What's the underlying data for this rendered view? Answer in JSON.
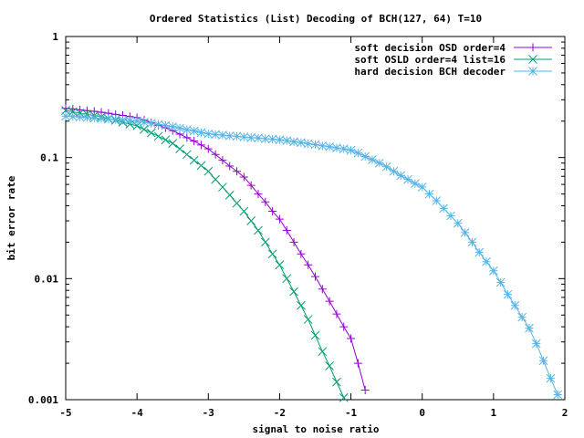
{
  "chart_data": {
    "type": "line",
    "title": "Ordered Statistics (List) Decoding of BCH(127, 64) T=10",
    "xlabel": "signal to noise ratio",
    "ylabel": "bit error rate",
    "xlim": [
      -5,
      2
    ],
    "ylim": [
      0.001,
      1
    ],
    "yscale": "log",
    "grid": false,
    "legend_position": "top-right",
    "x_ticks": [
      "-5",
      "-4",
      "-3",
      "-2",
      "-1",
      "0",
      "1",
      "2"
    ],
    "y_ticks": [
      "1",
      "0.1",
      "0.01",
      "0.001"
    ],
    "series": [
      {
        "name": "soft decision OSD order=4",
        "color": "#9400d3",
        "marker": "plus",
        "points": [
          [
            -5,
            0.255
          ],
          [
            -4.9,
            0.252
          ],
          [
            -4.8,
            0.248
          ],
          [
            -4.7,
            0.244
          ],
          [
            -4.6,
            0.241
          ],
          [
            -4.5,
            0.237
          ],
          [
            -4.4,
            0.232
          ],
          [
            -4.3,
            0.227
          ],
          [
            -4.2,
            0.223
          ],
          [
            -4.1,
            0.218
          ],
          [
            -4.0,
            0.214
          ],
          [
            -3.9,
            0.204
          ],
          [
            -3.8,
            0.194
          ],
          [
            -3.7,
            0.185
          ],
          [
            -3.6,
            0.176
          ],
          [
            -3.5,
            0.167
          ],
          [
            -3.4,
            0.156
          ],
          [
            -3.3,
            0.146
          ],
          [
            -3.2,
            0.137
          ],
          [
            -3.1,
            0.127
          ],
          [
            -3.0,
            0.118
          ],
          [
            -2.9,
            0.106
          ],
          [
            -2.8,
            0.095
          ],
          [
            -2.7,
            0.085
          ],
          [
            -2.6,
            0.077
          ],
          [
            -2.5,
            0.069
          ],
          [
            -2.4,
            0.059
          ],
          [
            -2.3,
            0.05
          ],
          [
            -2.2,
            0.043
          ],
          [
            -2.1,
            0.036
          ],
          [
            -2.0,
            0.031
          ],
          [
            -1.9,
            0.025
          ],
          [
            -1.8,
            0.02
          ],
          [
            -1.7,
            0.016
          ],
          [
            -1.6,
            0.013
          ],
          [
            -1.5,
            0.0104
          ],
          [
            -1.4,
            0.0082
          ],
          [
            -1.3,
            0.0065
          ],
          [
            -1.2,
            0.0051
          ],
          [
            -1.1,
            0.004
          ],
          [
            -1.0,
            0.0032
          ],
          [
            -0.9,
            0.002
          ],
          [
            -0.8,
            0.0012
          ]
        ]
      },
      {
        "name": "soft OSLD order=4 list=16",
        "color": "#009e73",
        "marker": "cross",
        "points": [
          [
            -5,
            0.245
          ],
          [
            -4.9,
            0.239
          ],
          [
            -4.8,
            0.233
          ],
          [
            -4.7,
            0.228
          ],
          [
            -4.6,
            0.222
          ],
          [
            -4.5,
            0.217
          ],
          [
            -4.4,
            0.21
          ],
          [
            -4.3,
            0.203
          ],
          [
            -4.2,
            0.196
          ],
          [
            -4.1,
            0.189
          ],
          [
            -4.0,
            0.183
          ],
          [
            -3.9,
            0.171
          ],
          [
            -3.8,
            0.16
          ],
          [
            -3.7,
            0.15
          ],
          [
            -3.6,
            0.14
          ],
          [
            -3.5,
            0.131
          ],
          [
            -3.4,
            0.118
          ],
          [
            -3.3,
            0.106
          ],
          [
            -3.2,
            0.095
          ],
          [
            -3.1,
            0.086
          ],
          [
            -3.0,
            0.077
          ],
          [
            -2.9,
            0.066
          ],
          [
            -2.8,
            0.057
          ],
          [
            -2.7,
            0.049
          ],
          [
            -2.6,
            0.042
          ],
          [
            -2.5,
            0.036
          ],
          [
            -2.4,
            0.03
          ],
          [
            -2.3,
            0.025
          ],
          [
            -2.2,
            0.02
          ],
          [
            -2.1,
            0.016
          ],
          [
            -2.0,
            0.013
          ],
          [
            -1.9,
            0.01
          ],
          [
            -1.8,
            0.0078
          ],
          [
            -1.7,
            0.006
          ],
          [
            -1.6,
            0.0046
          ],
          [
            -1.5,
            0.0034
          ],
          [
            -1.4,
            0.0025
          ],
          [
            -1.3,
            0.0019
          ],
          [
            -1.2,
            0.0014
          ],
          [
            -1.1,
            0.00104
          ]
        ]
      },
      {
        "name": "hard decision BCH decoder",
        "color": "#56b4e9",
        "marker": "star",
        "points": [
          [
            -5,
            0.22
          ],
          [
            -4.9,
            0.218
          ],
          [
            -4.8,
            0.216
          ],
          [
            -4.7,
            0.214
          ],
          [
            -4.6,
            0.212
          ],
          [
            -4.5,
            0.21
          ],
          [
            -4.4,
            0.208
          ],
          [
            -4.3,
            0.206
          ],
          [
            -4.2,
            0.204
          ],
          [
            -4.1,
            0.202
          ],
          [
            -4.0,
            0.2
          ],
          [
            -3.9,
            0.196
          ],
          [
            -3.8,
            0.192
          ],
          [
            -3.7,
            0.188
          ],
          [
            -3.6,
            0.184
          ],
          [
            -3.5,
            0.18
          ],
          [
            -3.4,
            0.175
          ],
          [
            -3.3,
            0.17
          ],
          [
            -3.2,
            0.166
          ],
          [
            -3.1,
            0.161
          ],
          [
            -3.0,
            0.157
          ],
          [
            -2.9,
            0.155
          ],
          [
            -2.8,
            0.153
          ],
          [
            -2.7,
            0.151
          ],
          [
            -2.6,
            0.15
          ],
          [
            -2.5,
            0.148
          ],
          [
            -2.4,
            0.146
          ],
          [
            -2.3,
            0.145
          ],
          [
            -2.2,
            0.143
          ],
          [
            -2.1,
            0.142
          ],
          [
            -2.0,
            0.14
          ],
          [
            -1.9,
            0.138
          ],
          [
            -1.8,
            0.135
          ],
          [
            -1.7,
            0.133
          ],
          [
            -1.6,
            0.13
          ],
          [
            -1.5,
            0.128
          ],
          [
            -1.4,
            0.125
          ],
          [
            -1.3,
            0.123
          ],
          [
            -1.2,
            0.12
          ],
          [
            -1.1,
            0.118
          ],
          [
            -1.0,
            0.115
          ],
          [
            -0.9,
            0.109
          ],
          [
            -0.8,
            0.102
          ],
          [
            -0.7,
            0.096
          ],
          [
            -0.6,
            0.09
          ],
          [
            -0.5,
            0.084
          ],
          [
            -0.4,
            0.077
          ],
          [
            -0.3,
            0.071
          ],
          [
            -0.2,
            0.066
          ],
          [
            -0.1,
            0.061
          ],
          [
            0,
            0.057
          ],
          [
            0.1,
            0.05
          ],
          [
            0.2,
            0.044
          ],
          [
            0.3,
            0.038
          ],
          [
            0.4,
            0.033
          ],
          [
            0.5,
            0.0286
          ],
          [
            0.6,
            0.024
          ],
          [
            0.7,
            0.02
          ],
          [
            0.8,
            0.0165
          ],
          [
            0.9,
            0.0138
          ],
          [
            1.0,
            0.0116
          ],
          [
            1.1,
            0.0093
          ],
          [
            1.2,
            0.0074
          ],
          [
            1.3,
            0.006
          ],
          [
            1.4,
            0.0048
          ],
          [
            1.5,
            0.0039
          ],
          [
            1.6,
            0.0029
          ],
          [
            1.7,
            0.0021
          ],
          [
            1.8,
            0.0015
          ],
          [
            1.9,
            0.0011
          ]
        ]
      }
    ]
  }
}
